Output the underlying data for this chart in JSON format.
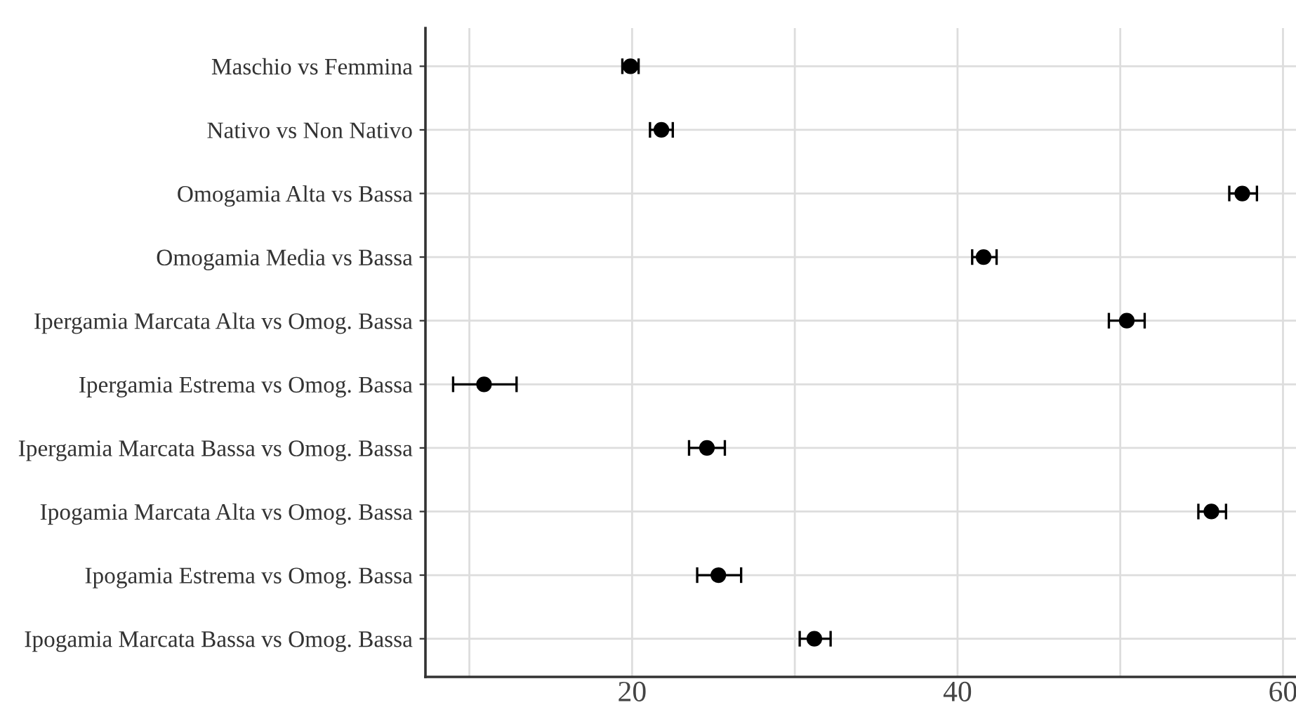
{
  "chart_data": {
    "type": "scatter",
    "orientation": "horizontal",
    "categories": [
      "Maschio vs Femmina",
      "Nativo vs Non Nativo",
      "Omogamia Alta vs Bassa",
      "Omogamia Media vs Bassa",
      "Ipergamia Marcata Alta vs Omog. Bassa",
      "Ipergamia Estrema vs Omog. Bassa",
      "Ipergamia Marcata Bassa vs Omog. Bassa",
      "Ipogamia Marcata Alta vs Omog. Bassa",
      "Ipogamia Estrema vs Omog. Bassa",
      "Ipogamia Marcata Bassa vs Omog. Bassa"
    ],
    "series": [
      {
        "color": "#000000",
        "values": [
          19.9,
          21.8,
          57.5,
          41.6,
          50.4,
          10.9,
          24.6,
          55.6,
          25.3,
          31.2
        ],
        "errors": [
          [
            19.4,
            20.4
          ],
          [
            21.1,
            22.5
          ],
          [
            56.7,
            58.4
          ],
          [
            40.9,
            42.4
          ],
          [
            49.3,
            51.5
          ],
          [
            9.0,
            12.9
          ],
          [
            23.5,
            25.7
          ],
          [
            54.8,
            56.5
          ],
          [
            24.0,
            26.7
          ],
          [
            30.3,
            32.2
          ]
        ]
      }
    ],
    "xlim": [
      7.3,
      60.8
    ],
    "xticks": [
      {
        "value": 10,
        "label": null
      },
      20,
      {
        "value": 30,
        "label": null
      },
      40,
      {
        "value": 50,
        "label": null
      },
      60
    ],
    "grid": true,
    "marker": "circle"
  }
}
